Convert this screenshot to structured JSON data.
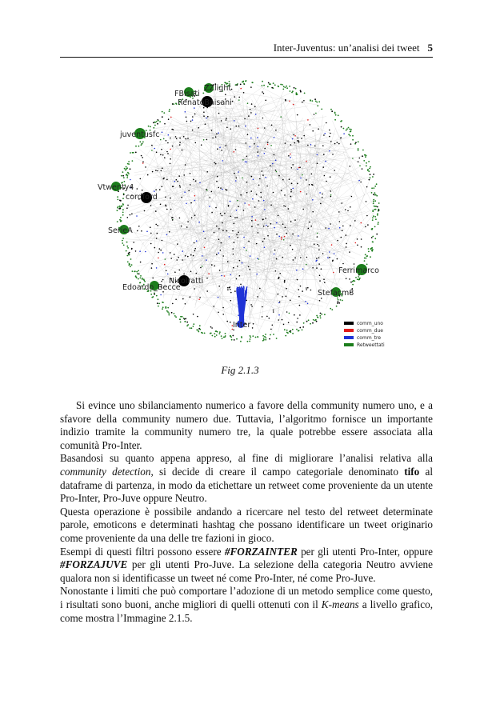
{
  "header": {
    "running_title": "Inter-Juventus: un’analisi dei tweet",
    "page_number": "5"
  },
  "figure": {
    "caption": "Fig 2.1.3",
    "node_labels": {
      "zzlight": "ZZlight",
      "fbisati": "FBisati",
      "renato": "RenatoBaisani",
      "juventusfc": "juventusfc",
      "vtwenty": "Vtwenty4",
      "cordford": "cordford",
      "serie": "SerieA",
      "edoardo": "Edoardo_Becce",
      "ratti": "Nicolratti",
      "marco": "Ferrimarco",
      "stefano": "Stefacm8",
      "inter": "Inter"
    },
    "legend": [
      "comm_uno",
      "comm_due",
      "comm_tre",
      "Retweettati"
    ],
    "colors": {
      "comm_uno": "#000000",
      "comm_due": "#e11b1b",
      "comm_tre": "#1f33d6",
      "retweettati": "#1c7d1c"
    }
  },
  "paragraphs": {
    "p1": "Si evince uno sbilanciamento numerico a favore della community numero uno, e a sfavore della community numero due. Tuttavia, l’algoritmo fornisce un importante indizio tramite la community numero tre, la quale potrebbe essere associata alla comunità Pro-Inter.",
    "p2_a": "Basandosi su quanto appena appreso, al fine di migliorare l’analisi relativa alla ",
    "p2_em": "community detection",
    "p2_b": ", si decide di creare il campo categoriale denominato ",
    "p2_strong": "tifo",
    "p2_c": " al dataframe di partenza, in modo da etichettare un retweet come proveniente da un utente Pro-Inter, Pro-Juve oppure Neutro.",
    "p3": "Questa operazione è possibile andando a ricercare nel testo del retweet determinate parole, emoticons e determinati hashtag che possano identificare un tweet originario come proveniente da una delle tre fazioni in gioco.",
    "p4_a": "Esempi di questi filtri possono essere ",
    "p4_em1": "#FORZAINTER",
    "p4_b": " per gli utenti Pro-Inter, oppure ",
    "p4_em2": "#FORZAJUVE",
    "p4_c": " per gli utenti Pro-Juve. La selezione della categoria Neutro avviene qualora non si identificasse un tweet né come Pro-Inter, né come Pro-Juve.",
    "p5_a": "Nonostante i limiti che può comportare l’adozione di un metodo semplice come questo, i risultati sono buoni, anche migliori di quelli ottenuti con il ",
    "p5_em": "K-means",
    "p5_b": " a livello grafico, come mostra l’Immagine 2.1.5."
  }
}
